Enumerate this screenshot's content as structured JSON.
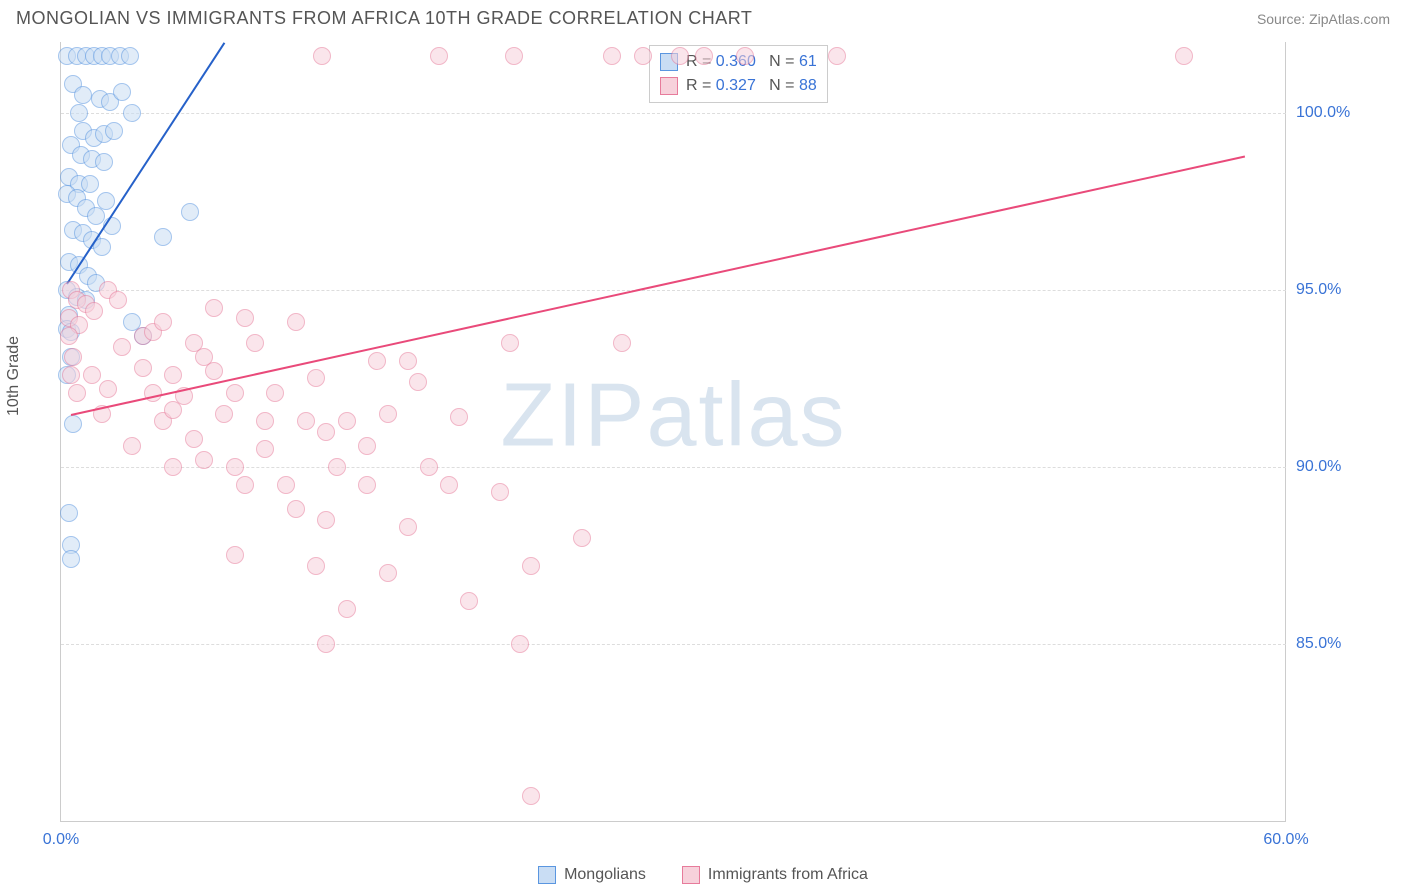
{
  "title": "MONGOLIAN VS IMMIGRANTS FROM AFRICA 10TH GRADE CORRELATION CHART",
  "source": "Source: ZipAtlas.com",
  "ylabel": "10th Grade",
  "watermark_bold": "ZIP",
  "watermark_light": "atlas",
  "chart": {
    "type": "scatter",
    "xlim": [
      0,
      60
    ],
    "ylim": [
      80,
      102
    ],
    "xtick_positions": [
      0,
      60
    ],
    "xtick_labels": [
      "0.0%",
      "60.0%"
    ],
    "ytick_positions": [
      85,
      90,
      95,
      100
    ],
    "ytick_labels": [
      "85.0%",
      "90.0%",
      "95.0%",
      "100.0%"
    ],
    "grid_color": "#dddddd",
    "axis_color": "#cccccc",
    "background_color": "#ffffff",
    "tick_label_color": "#3973d6",
    "tick_fontsize": 16,
    "title_fontsize": 18,
    "title_color": "#555555",
    "marker_radius": 9,
    "series": [
      {
        "name": "Mongolians",
        "fill": "#c9ddf4",
        "fill_opacity": 0.55,
        "stroke": "#5a96e0",
        "trend_color": "#2661c9",
        "trend_width": 2,
        "trend": {
          "x1": 0.3,
          "y1": 95.2,
          "x2": 8.0,
          "y2": 102.0
        },
        "R": "0.360",
        "N": "61",
        "points": [
          [
            0.3,
            101.6
          ],
          [
            0.8,
            101.6
          ],
          [
            1.2,
            101.6
          ],
          [
            1.6,
            101.6
          ],
          [
            2.0,
            101.6
          ],
          [
            2.4,
            101.6
          ],
          [
            2.9,
            101.6
          ],
          [
            3.4,
            101.6
          ],
          [
            0.6,
            100.8
          ],
          [
            1.1,
            100.5
          ],
          [
            0.9,
            100.0
          ],
          [
            1.9,
            100.4
          ],
          [
            2.4,
            100.3
          ],
          [
            3.0,
            100.6
          ],
          [
            3.5,
            100.0
          ],
          [
            1.1,
            99.5
          ],
          [
            1.6,
            99.3
          ],
          [
            2.1,
            99.4
          ],
          [
            2.6,
            99.5
          ],
          [
            0.5,
            99.1
          ],
          [
            1.0,
            98.8
          ],
          [
            1.5,
            98.7
          ],
          [
            2.1,
            98.6
          ],
          [
            0.4,
            98.2
          ],
          [
            0.9,
            98.0
          ],
          [
            1.4,
            98.0
          ],
          [
            0.3,
            97.7
          ],
          [
            0.8,
            97.6
          ],
          [
            1.2,
            97.3
          ],
          [
            1.7,
            97.1
          ],
          [
            2.2,
            97.5
          ],
          [
            6.3,
            97.2
          ],
          [
            0.6,
            96.7
          ],
          [
            1.1,
            96.6
          ],
          [
            1.5,
            96.4
          ],
          [
            2.0,
            96.2
          ],
          [
            2.5,
            96.8
          ],
          [
            5.0,
            96.5
          ],
          [
            0.4,
            95.8
          ],
          [
            0.9,
            95.7
          ],
          [
            1.3,
            95.4
          ],
          [
            1.7,
            95.2
          ],
          [
            0.3,
            95.0
          ],
          [
            0.8,
            94.8
          ],
          [
            1.2,
            94.7
          ],
          [
            0.4,
            94.3
          ],
          [
            3.5,
            94.1
          ],
          [
            0.3,
            93.9
          ],
          [
            0.5,
            93.8
          ],
          [
            4.0,
            93.7
          ],
          [
            0.5,
            93.1
          ],
          [
            0.3,
            92.6
          ],
          [
            0.6,
            91.2
          ],
          [
            0.4,
            88.7
          ],
          [
            0.5,
            87.8
          ],
          [
            0.5,
            87.4
          ]
        ]
      },
      {
        "name": "Immigrants from Africa",
        "fill": "#f7d1db",
        "fill_opacity": 0.55,
        "stroke": "#e77b9b",
        "trend_color": "#e94a7a",
        "trend_width": 2,
        "trend": {
          "x1": 0.5,
          "y1": 91.5,
          "x2": 58.0,
          "y2": 98.8
        },
        "R": "0.327",
        "N": "88",
        "points": [
          [
            12.8,
            101.6
          ],
          [
            18.5,
            101.6
          ],
          [
            22.2,
            101.6
          ],
          [
            27.0,
            101.6
          ],
          [
            28.5,
            101.6
          ],
          [
            30.3,
            101.6
          ],
          [
            31.5,
            101.6
          ],
          [
            33.5,
            101.6
          ],
          [
            38.0,
            101.6
          ],
          [
            55.0,
            101.6
          ],
          [
            0.5,
            95.0
          ],
          [
            0.8,
            94.7
          ],
          [
            1.2,
            94.6
          ],
          [
            1.6,
            94.4
          ],
          [
            2.3,
            95.0
          ],
          [
            2.8,
            94.7
          ],
          [
            0.4,
            94.2
          ],
          [
            0.9,
            94.0
          ],
          [
            0.4,
            93.7
          ],
          [
            4.0,
            93.7
          ],
          [
            7.5,
            94.5
          ],
          [
            0.6,
            93.1
          ],
          [
            3.0,
            93.4
          ],
          [
            4.5,
            93.8
          ],
          [
            5.0,
            94.1
          ],
          [
            6.5,
            93.5
          ],
          [
            7.0,
            93.1
          ],
          [
            9.0,
            94.2
          ],
          [
            9.5,
            93.5
          ],
          [
            11.5,
            94.1
          ],
          [
            0.5,
            92.6
          ],
          [
            1.5,
            92.6
          ],
          [
            4.0,
            92.8
          ],
          [
            5.5,
            92.6
          ],
          [
            7.5,
            92.7
          ],
          [
            0.8,
            92.1
          ],
          [
            2.3,
            92.2
          ],
          [
            4.5,
            92.1
          ],
          [
            6.0,
            92.0
          ],
          [
            8.5,
            92.1
          ],
          [
            10.5,
            92.1
          ],
          [
            12.5,
            92.5
          ],
          [
            2.0,
            91.5
          ],
          [
            5.0,
            91.3
          ],
          [
            5.5,
            91.6
          ],
          [
            8.0,
            91.5
          ],
          [
            10.0,
            91.3
          ],
          [
            12.0,
            91.3
          ],
          [
            14.0,
            91.3
          ],
          [
            13.0,
            91.0
          ],
          [
            3.5,
            90.6
          ],
          [
            6.5,
            90.8
          ],
          [
            10.0,
            90.5
          ],
          [
            15.0,
            90.6
          ],
          [
            16.0,
            91.5
          ],
          [
            15.5,
            93.0
          ],
          [
            17.0,
            93.0
          ],
          [
            17.5,
            92.4
          ],
          [
            5.5,
            90.0
          ],
          [
            7.0,
            90.2
          ],
          [
            8.5,
            90.0
          ],
          [
            13.5,
            90.0
          ],
          [
            18.0,
            90.0
          ],
          [
            19.5,
            91.4
          ],
          [
            22.0,
            93.5
          ],
          [
            27.5,
            93.5
          ],
          [
            9.0,
            89.5
          ],
          [
            11.0,
            89.5
          ],
          [
            15.0,
            89.5
          ],
          [
            19.0,
            89.5
          ],
          [
            21.5,
            89.3
          ],
          [
            11.5,
            88.8
          ],
          [
            13.0,
            88.5
          ],
          [
            17.0,
            88.3
          ],
          [
            25.5,
            88.0
          ],
          [
            8.5,
            87.5
          ],
          [
            12.5,
            87.2
          ],
          [
            16.0,
            87.0
          ],
          [
            23.0,
            87.2
          ],
          [
            14.0,
            86.0
          ],
          [
            20.0,
            86.2
          ],
          [
            13.0,
            85.0
          ],
          [
            22.5,
            85.0
          ],
          [
            23.0,
            80.7
          ]
        ]
      }
    ]
  },
  "legend_top_label_R": "R =",
  "legend_top_label_N": "N =",
  "legend_bottom": [
    {
      "label": "Mongolians",
      "fill": "#c9ddf4",
      "stroke": "#5a96e0"
    },
    {
      "label": "Immigrants from Africa",
      "fill": "#f7d1db",
      "stroke": "#e77b9b"
    }
  ]
}
